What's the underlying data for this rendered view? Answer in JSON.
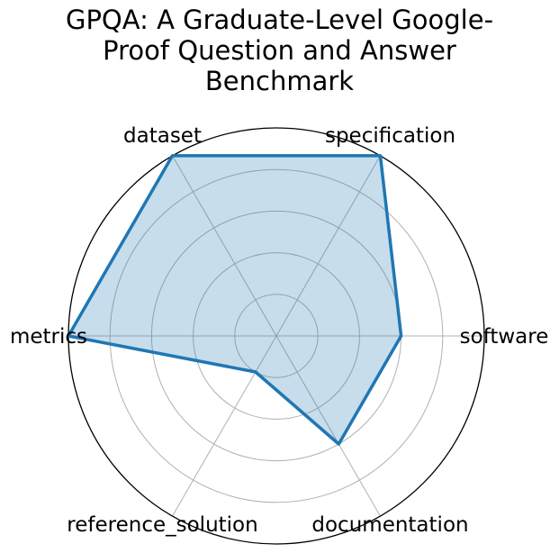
{
  "chart_data": {
    "type": "radar",
    "projection": "polar",
    "title": "GPQA: A Graduate-Level Google-Proof Question and Answer Benchmark",
    "title_lines": [
      "GPQA: A Graduate-Level Google-",
      "Proof Question and Answer",
      "Benchmark"
    ],
    "categories": [
      "software",
      "specification",
      "dataset",
      "metrics",
      "reference_solution",
      "documentation"
    ],
    "angles_deg": [
      0,
      60,
      120,
      180,
      240,
      300
    ],
    "series": [
      {
        "name": "GPQA",
        "values": [
          0.6,
          1.0,
          1.0,
          1.0,
          0.2,
          0.6
        ]
      }
    ],
    "rlim": [
      0,
      1
    ],
    "grid_rings": [
      0.2,
      0.4,
      0.6,
      0.8
    ],
    "grid": true,
    "legend": false,
    "radial_tick_labels_visible": false,
    "colors": {
      "line": "#1f77b4",
      "fill": "#1f77b4",
      "fill_opacity": 0.25,
      "grid": "#b0b0b0",
      "outline": "#000000",
      "text": "#000000"
    }
  }
}
